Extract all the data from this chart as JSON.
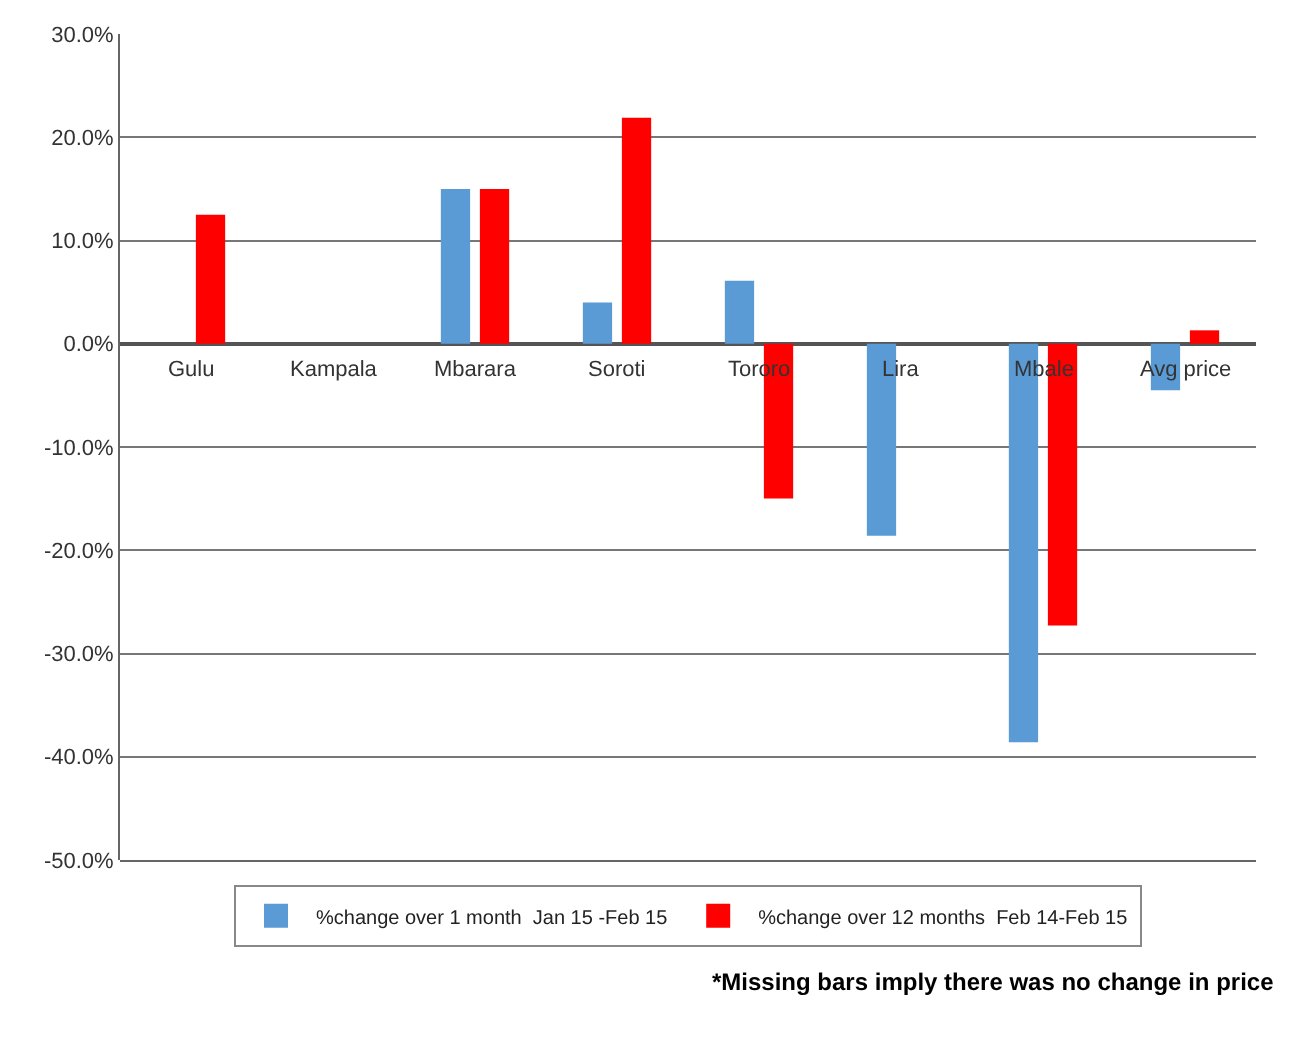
{
  "chart_data": {
    "type": "bar",
    "categories": [
      "Gulu",
      "Kampala",
      "Mbarara",
      "Soroti",
      "Tororo",
      "Lira",
      "Mbale",
      "Avg price"
    ],
    "series": [
      {
        "name": "%change over 1 month  Jan 15 -Feb 15",
        "color": "#5b9bd5",
        "values": [
          0,
          0,
          15.0,
          4.0,
          6.1,
          -18.6,
          -38.6,
          -4.5
        ]
      },
      {
        "name": "%change over 12 months  Feb 14-Feb 15",
        "color": "#ff0000",
        "values": [
          12.5,
          0,
          15.0,
          21.9,
          -15.0,
          0,
          -27.3,
          1.3
        ]
      }
    ],
    "ylim": [
      -50,
      30
    ],
    "yticks": [
      {
        "value": -50,
        "label": "-50.0%"
      },
      {
        "value": -40,
        "label": "-40.0%"
      },
      {
        "value": -30,
        "label": "-30.0%"
      },
      {
        "value": -20,
        "label": "-20.0%"
      },
      {
        "value": -10,
        "label": "-10.0%"
      },
      {
        "value": 0,
        "label": "0.0%"
      },
      {
        "value": 10,
        "label": "10.0%"
      },
      {
        "value": 20,
        "label": "20.0%"
      },
      {
        "value": 30,
        "label": "30.0%"
      }
    ],
    "grid": "y",
    "legend": "bottom",
    "annotations": [
      "*Missing bars imply there was no change in price"
    ]
  }
}
